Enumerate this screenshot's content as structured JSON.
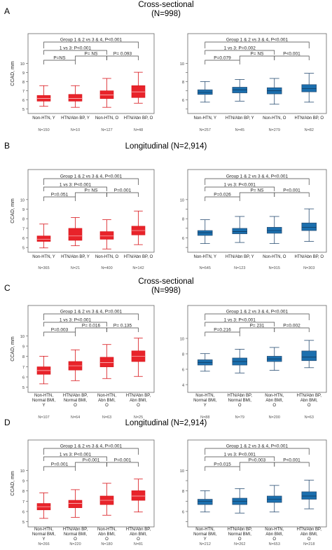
{
  "sections": [
    {
      "letter": "A",
      "title": "Cross-sectional",
      "n_label": "(N=998)"
    },
    {
      "letter": "B",
      "title": "Longitudinal (N=2,914)",
      "n_label": ""
    },
    {
      "letter": "C",
      "title": "Cross-sectional",
      "n_label": "(N=998)"
    },
    {
      "letter": "D",
      "title": "Longitudinal (N=2,914)",
      "n_label": ""
    }
  ],
  "colors": {
    "red_fill": "#e8232a",
    "red_line": "#d9151b",
    "blue_fill": "#1b6fae",
    "blue_line": "#2b4f73",
    "bracket": "#444444",
    "axis": "#666666"
  },
  "chart_data": [
    {
      "type": "box",
      "section": "A",
      "side": "left",
      "ylabel": "CCAD, mm",
      "ylim": [
        5,
        10.3
      ],
      "yticks": [
        "5",
        "6",
        "7",
        "8",
        "9",
        "10"
      ],
      "categories": [
        "Non-HTN, Y",
        "HTN/Abn BP, Y",
        "Non-HTN, O",
        "HTN/Abn BP, O"
      ],
      "n_labels": [
        "N=150",
        "N=10",
        "N=127",
        "N=48"
      ],
      "boxes": [
        {
          "min": 5.7,
          "q1": 6.2,
          "median": 6.45,
          "q3": 6.75,
          "max": 7.7
        },
        {
          "min": 5.6,
          "q1": 6.2,
          "median": 6.45,
          "q3": 6.85,
          "max": 7.7
        },
        {
          "min": 5.6,
          "q1": 6.45,
          "median": 6.8,
          "q3": 7.2,
          "max": 8.4
        },
        {
          "min": 6.0,
          "q1": 6.55,
          "median": 7.1,
          "q3": 7.7,
          "max": 9.0
        }
      ],
      "brackets": [
        {
          "from": 1,
          "to": 4,
          "level": 3,
          "label": "Group 1 & 2 vs 3 & 4, P<0.001"
        },
        {
          "from": 1,
          "to": 3,
          "level": 2,
          "label": "1 vs 3: P<0.001"
        },
        {
          "from": 1,
          "to": 2,
          "level": 0,
          "label": "P=NS"
        },
        {
          "from": 2,
          "to": 3,
          "level": 1,
          "label": "P= NS"
        },
        {
          "from": 3,
          "to": 4,
          "level": 1,
          "label": "P= 0.093"
        }
      ]
    },
    {
      "type": "box",
      "section": "A",
      "side": "right",
      "ylabel": "",
      "ylim": [
        5,
        10.3
      ],
      "yticks": [
        "",
        "6",
        "",
        "8",
        "",
        "10"
      ],
      "categories": [
        "Non-HTN, Y",
        "HTN/Abn BP, Y",
        "Non-HTN, O",
        "HTN/Abn BP, O"
      ],
      "n_labels": [
        "N=257",
        "N=45",
        "N=279",
        "N=82"
      ],
      "boxes": [
        {
          "min": 6.1,
          "q1": 6.85,
          "median": 7.05,
          "q3": 7.3,
          "max": 8.1
        },
        {
          "min": 6.2,
          "q1": 7.0,
          "median": 7.3,
          "q3": 7.55,
          "max": 8.3
        },
        {
          "min": 5.9,
          "q1": 6.9,
          "median": 7.2,
          "q3": 7.5,
          "max": 8.4
        },
        {
          "min": 6.1,
          "q1": 7.1,
          "median": 7.4,
          "q3": 7.8,
          "max": 8.9
        }
      ],
      "brackets": [
        {
          "from": 1,
          "to": 4,
          "level": 3,
          "label": "Group 1 & 2 vs 3 & 4, P<0.001"
        },
        {
          "from": 1,
          "to": 3,
          "level": 2,
          "label": "1 vs 3: P=0.002"
        },
        {
          "from": 1,
          "to": 2,
          "level": 0,
          "label": "P=0.079"
        },
        {
          "from": 2,
          "to": 3,
          "level": 1,
          "label": "P= NS"
        },
        {
          "from": 3,
          "to": 4,
          "level": 1,
          "label": "P<0.001"
        }
      ]
    },
    {
      "type": "box",
      "section": "B",
      "side": "left",
      "ylabel": "CCAD, mm",
      "ylim": [
        5,
        10.3
      ],
      "yticks": [
        "5",
        "6",
        "7",
        "8",
        "9",
        "10"
      ],
      "categories": [
        "Non-HTN, Y",
        "HTN/Abn BP, Y",
        "Non-HTN, O",
        "HTN/Abn BP, O"
      ],
      "n_labels": [
        "N=365",
        "N=21",
        "N=400",
        "N=142"
      ],
      "boxes": [
        {
          "min": 5.4,
          "q1": 6.0,
          "median": 6.2,
          "q3": 6.5,
          "max": 7.6
        },
        {
          "min": 5.6,
          "q1": 6.1,
          "median": 6.5,
          "q3": 7.2,
          "max": 8.2
        },
        {
          "min": 5.3,
          "q1": 6.2,
          "median": 6.5,
          "q3": 6.9,
          "max": 8.0
        },
        {
          "min": 5.7,
          "q1": 6.6,
          "median": 7.0,
          "q3": 7.4,
          "max": 8.8
        }
      ],
      "brackets": [
        {
          "from": 1,
          "to": 4,
          "level": 3,
          "label": "Group 1 & 2 vs 3 & 4, P<0.001"
        },
        {
          "from": 1,
          "to": 3,
          "level": 2,
          "label": "1 vs 3: P<0.001"
        },
        {
          "from": 1,
          "to": 2,
          "level": 0,
          "label": "P=0.051"
        },
        {
          "from": 2,
          "to": 3,
          "level": 1,
          "label": "P= NS"
        },
        {
          "from": 3,
          "to": 4,
          "level": 1,
          "label": "P=0.001"
        }
      ]
    },
    {
      "type": "box",
      "section": "B",
      "side": "right",
      "ylabel": "",
      "ylim": [
        5,
        10.3
      ],
      "yticks": [
        "",
        "6",
        "",
        "8",
        "",
        "10"
      ],
      "categories": [
        "Non-HTN, Y",
        "HTN/Abn BP, Y",
        "Non-HTN, O",
        "HTN/Abn BP, O"
      ],
      "n_labels": [
        "N=645",
        "N=123",
        "N=915",
        "N=303"
      ],
      "boxes": [
        {
          "min": 5.8,
          "q1": 6.55,
          "median": 6.8,
          "q3": 7.0,
          "max": 8.0
        },
        {
          "min": 5.9,
          "q1": 6.7,
          "median": 6.9,
          "q3": 7.2,
          "max": 8.3
        },
        {
          "min": 5.8,
          "q1": 6.75,
          "median": 7.0,
          "q3": 7.3,
          "max": 8.3
        },
        {
          "min": 6.0,
          "q1": 7.0,
          "median": 7.3,
          "q3": 7.7,
          "max": 9.0
        }
      ],
      "brackets": [
        {
          "from": 1,
          "to": 4,
          "level": 3,
          "label": "Group 1 & 2 vs 3 & 4, P<0.001"
        },
        {
          "from": 1,
          "to": 3,
          "level": 2,
          "label": "1 vs 3: P<0.001"
        },
        {
          "from": 1,
          "to": 2,
          "level": 0,
          "label": "P=0.026"
        },
        {
          "from": 2,
          "to": 3,
          "level": 1,
          "label": "P= NS"
        },
        {
          "from": 3,
          "to": 4,
          "level": 1,
          "label": "P<0.001"
        }
      ]
    },
    {
      "type": "box",
      "section": "C",
      "side": "left",
      "ylabel": "CCAD, mm",
      "ylim": [
        4.5,
        10.3
      ],
      "yticks": [
        "5",
        "6",
        "7",
        "8",
        "9",
        "10"
      ],
      "categories": [
        "Non-HTN, Normal BMI, Y",
        "HTN/Abn BP, Normal BMI, O",
        "Non-HTN, Abn BMI, O",
        "HTN/Abn BP, Abn BMI, O"
      ],
      "n_labels": [
        "N=107",
        "N=64",
        "N=63",
        "N=25"
      ],
      "boxes": [
        {
          "min": 5.3,
          "q1": 6.2,
          "median": 6.55,
          "q3": 6.9,
          "max": 7.9
        },
        {
          "min": 5.6,
          "q1": 6.6,
          "median": 7.0,
          "q3": 7.4,
          "max": 8.5
        },
        {
          "min": 5.8,
          "q1": 6.9,
          "median": 7.3,
          "q3": 7.8,
          "max": 9.0
        },
        {
          "min": 6.0,
          "q1": 7.4,
          "median": 7.9,
          "q3": 8.4,
          "max": 9.6
        }
      ],
      "brackets": [
        {
          "from": 1,
          "to": 4,
          "level": 3,
          "label": "Group 1 & 2 vs 3 & 4, P=0.001"
        },
        {
          "from": 1,
          "to": 3,
          "level": 2,
          "label": "1 vs 3: P<0.001"
        },
        {
          "from": 1,
          "to": 2,
          "level": 0,
          "label": "P=0.003"
        },
        {
          "from": 2,
          "to": 3,
          "level": 1,
          "label": "P= 0.016"
        },
        {
          "from": 3,
          "to": 4,
          "level": 1,
          "label": "P= 0.135"
        }
      ]
    },
    {
      "type": "box",
      "section": "C",
      "side": "right",
      "ylabel": "",
      "ylim": [
        3.5,
        10.5
      ],
      "yticks": [
        "4",
        "6",
        "8",
        "10"
      ],
      "categories": [
        "Non-HTN, Normal BMI, Y",
        "HTN/Abn BP, Normal BMI, O",
        "Non-HTN, Abn BMI, O",
        "HTN/Abn BP, Abn BMI, O"
      ],
      "n_labels": [
        "N=88",
        "N=79",
        "N=200",
        "N=63"
      ],
      "boxes": [
        {
          "min": 5.9,
          "q1": 6.6,
          "median": 6.9,
          "q3": 7.2,
          "max": 7.9
        },
        {
          "min": 5.7,
          "q1": 6.6,
          "median": 7.0,
          "q3": 7.4,
          "max": 8.4
        },
        {
          "min": 6.0,
          "q1": 7.0,
          "median": 7.3,
          "q3": 7.6,
          "max": 8.6
        },
        {
          "min": 6.3,
          "q1": 7.1,
          "median": 7.5,
          "q3": 8.2,
          "max": 9.4
        }
      ],
      "brackets": [
        {
          "from": 1,
          "to": 4,
          "level": 3,
          "label": "Group 1 & 2 vs 3 & 4, P<0.001"
        },
        {
          "from": 1,
          "to": 3,
          "level": 2,
          "label": "1 vs 3: P<0.001"
        },
        {
          "from": 1,
          "to": 2,
          "level": 0,
          "label": "P=0.216"
        },
        {
          "from": 2,
          "to": 3,
          "level": 1,
          "label": "P= 231"
        },
        {
          "from": 3,
          "to": 4,
          "level": 1,
          "label": "P=0.002"
        }
      ]
    },
    {
      "type": "box",
      "section": "D",
      "side": "left",
      "ylabel": "CCAD, mm",
      "ylim": [
        4.5,
        10.3
      ],
      "yticks": [
        "5",
        "6",
        "7",
        "8",
        "9",
        "10"
      ],
      "categories": [
        "Non-HTN, Normal BMI, Y",
        "HTN/Abn BP, Normal BMI, O",
        "Non-HTN, Abn BMI, O",
        "HTN/Abn BP, Abn BMI, O"
      ],
      "n_labels": [
        "N=266",
        "N=220",
        "N=180",
        "N=81"
      ],
      "boxes": [
        {
          "min": 5.3,
          "q1": 6.1,
          "median": 6.4,
          "q3": 6.7,
          "max": 7.7
        },
        {
          "min": 5.4,
          "q1": 6.3,
          "median": 6.7,
          "q3": 7.0,
          "max": 8.0
        },
        {
          "min": 5.6,
          "q1": 6.6,
          "median": 7.0,
          "q3": 7.4,
          "max": 8.6
        },
        {
          "min": 5.9,
          "q1": 7.0,
          "median": 7.4,
          "q3": 7.9,
          "max": 9.0
        }
      ],
      "brackets": [
        {
          "from": 1,
          "to": 4,
          "level": 3,
          "label": "Group 1 & 2 vs 3 & 4, P=0.001"
        },
        {
          "from": 1,
          "to": 3,
          "level": 2,
          "label": "1 vs 3: P<0.001"
        },
        {
          "from": 1,
          "to": 2,
          "level": 0,
          "label": "P=0.001"
        },
        {
          "from": 2,
          "to": 3,
          "level": 1,
          "label": "P=0.001"
        },
        {
          "from": 3,
          "to": 4,
          "level": 1,
          "label": "P=0.001"
        }
      ]
    },
    {
      "type": "box",
      "section": "D",
      "side": "right",
      "ylabel": "",
      "ylim": [
        4.5,
        10.3
      ],
      "yticks": [
        "",
        "6",
        "",
        "8",
        "",
        "10"
      ],
      "categories": [
        "Non-HTN, Normal BMI, Y",
        "HTN/Abn BP, Normal BMI, O",
        "Non-HTN, Abn BMI, O",
        "HTN/Abn BP, Abn BMI, O"
      ],
      "n_labels": [
        "N=212",
        "N=262",
        "N=653",
        "N=218"
      ],
      "boxes": [
        {
          "min": 5.9,
          "q1": 6.6,
          "median": 6.9,
          "q3": 7.1,
          "max": 7.9
        },
        {
          "min": 5.8,
          "q1": 6.6,
          "median": 6.9,
          "q3": 7.2,
          "max": 8.1
        },
        {
          "min": 5.9,
          "q1": 6.8,
          "median": 7.1,
          "q3": 7.4,
          "max": 8.4
        },
        {
          "min": 6.2,
          "q1": 7.1,
          "median": 7.4,
          "q3": 7.8,
          "max": 8.9
        }
      ],
      "brackets": [
        {
          "from": 1,
          "to": 4,
          "level": 3,
          "label": "Group 1 & 2 vs 3 & 4, P<0.001"
        },
        {
          "from": 1,
          "to": 3,
          "level": 2,
          "label": "1 vs 3: P<0.001"
        },
        {
          "from": 1,
          "to": 2,
          "level": 0,
          "label": "P=0.015"
        },
        {
          "from": 2,
          "to": 3,
          "level": 1,
          "label": "P=0.003"
        },
        {
          "from": 3,
          "to": 4,
          "level": 1,
          "label": "P<0.001"
        }
      ]
    }
  ]
}
